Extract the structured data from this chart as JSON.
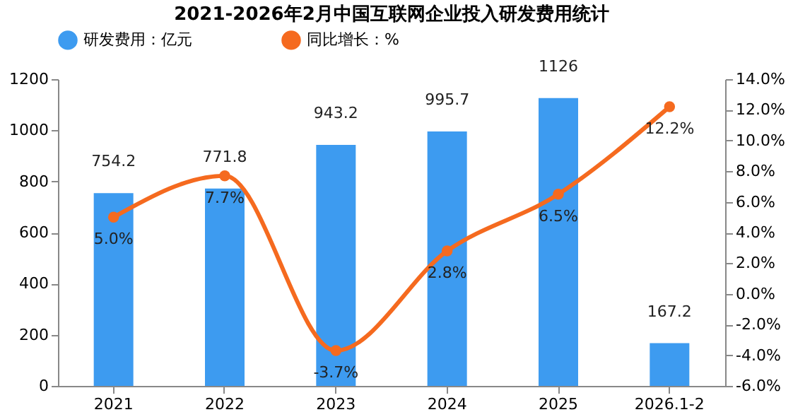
{
  "chart_data": {
    "type": "bar",
    "title": "2021-2026年2月中国互联网企业投入研发费用统计",
    "categories": [
      "2021",
      "2022",
      "2023",
      "2024",
      "2025",
      "2026.1-2"
    ],
    "series": [
      {
        "name": "研发费用：亿元",
        "color": "#3d9bf0",
        "values": [
          754.2,
          771.8,
          943.2,
          995.7,
          1126,
          167.2
        ],
        "value_labels": [
          "754.2",
          "771.8",
          "943.2",
          "995.7",
          "1126",
          "167.2"
        ]
      },
      {
        "name": "同比增长：%",
        "type": "line",
        "axis": "y2",
        "color": "#f56a1f",
        "values": [
          5.0,
          7.7,
          -3.7,
          2.8,
          6.5,
          12.2
        ],
        "value_labels": [
          "5.0%",
          "7.7%",
          "-3.7%",
          "2.8%",
          "6.5%",
          "12.2%"
        ]
      }
    ],
    "ylim": [
      0,
      1200
    ],
    "yticks": [
      0,
      200,
      400,
      600,
      800,
      1000,
      1200
    ],
    "y2lim": [
      -6,
      14
    ],
    "y2ticks": [
      {
        "value": -6,
        "label": "-6.0%"
      },
      {
        "value": -4,
        "label": "-4.0%"
      },
      {
        "value": -2,
        "label": "-2.0%"
      },
      {
        "value": 0,
        "label": "0.0%"
      },
      {
        "value": 2,
        "label": "2.0%"
      },
      {
        "value": 4,
        "label": "4.0%"
      },
      {
        "value": 6,
        "label": "6.0%"
      },
      {
        "value": 8,
        "label": "8.0%"
      },
      {
        "value": 10,
        "label": "10.0%"
      },
      {
        "value": 12,
        "label": "12.0%"
      },
      {
        "value": 14,
        "label": "14.0%"
      }
    ],
    "legend": "top",
    "grid": false,
    "marker": "circle",
    "line_style": "solid"
  }
}
